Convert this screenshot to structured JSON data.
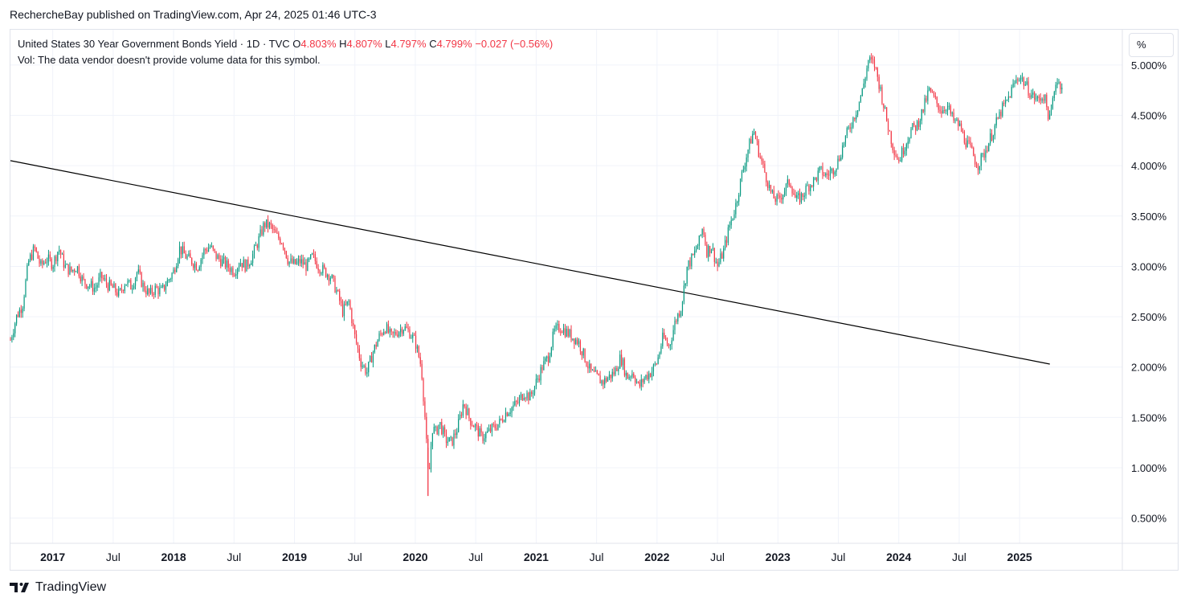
{
  "header": {
    "publisher": "RechercheBay published on TradingView.com, Apr 24, 2025 01:46 UTC-3"
  },
  "legend": {
    "symbol": "United States 30 Year Government Bonds Yield · 1D · TVC",
    "o_label": "O",
    "o_value": "4.803%",
    "h_label": "H",
    "h_value": "4.807%",
    "l_label": "L",
    "l_value": "4.797%",
    "c_label": "C",
    "c_value": "4.799%",
    "change": "−0.027 (−0.56%)",
    "volume_note": "Vol: The data vendor doesn't provide volume data for this symbol."
  },
  "scale": {
    "unit": "%"
  },
  "footer": {
    "brand": "TradingView"
  },
  "colors": {
    "up": "#089981",
    "down": "#f23645",
    "grid": "#f0f3fa",
    "trendline": "#000000"
  },
  "chart_data": {
    "type": "line",
    "title": "United States 30 Year Government Bonds Yield",
    "ylim": [
      0.25,
      5.35
    ],
    "xlim": [
      2016.3,
      2025.5
    ],
    "y_ticks": [
      0.5,
      1.0,
      1.5,
      2.0,
      2.5,
      3.0,
      3.5,
      4.0,
      4.5,
      5.0
    ],
    "y_tick_labels": [
      "0.500%",
      "1.000%",
      "1.500%",
      "2.000%",
      "2.500%",
      "3.000%",
      "3.500%",
      "4.000%",
      "4.500%",
      "5.000%"
    ],
    "x_ticks": [
      {
        "x": 2016.65,
        "label": "2017",
        "bold": true
      },
      {
        "x": 2017.15,
        "label": "Jul",
        "bold": false
      },
      {
        "x": 2017.65,
        "label": "2018",
        "bold": true
      },
      {
        "x": 2018.15,
        "label": "Jul",
        "bold": false
      },
      {
        "x": 2018.65,
        "label": "2019",
        "bold": true
      },
      {
        "x": 2019.15,
        "label": "Jul",
        "bold": false
      },
      {
        "x": 2019.65,
        "label": "2020",
        "bold": true
      },
      {
        "x": 2020.15,
        "label": "Jul",
        "bold": false
      },
      {
        "x": 2020.65,
        "label": "2021",
        "bold": true
      },
      {
        "x": 2021.15,
        "label": "Jul",
        "bold": false
      },
      {
        "x": 2021.65,
        "label": "2022",
        "bold": true
      },
      {
        "x": 2022.15,
        "label": "Jul",
        "bold": false
      },
      {
        "x": 2022.65,
        "label": "2023",
        "bold": true
      },
      {
        "x": 2023.15,
        "label": "Jul",
        "bold": false
      },
      {
        "x": 2023.65,
        "label": "2024",
        "bold": true
      },
      {
        "x": 2024.15,
        "label": "Jul",
        "bold": false
      },
      {
        "x": 2024.65,
        "label": "2025",
        "bold": true
      }
    ],
    "series": [
      {
        "points": [
          [
            2016.3,
            2.27
          ],
          [
            2016.35,
            2.5
          ],
          [
            2016.4,
            2.62
          ],
          [
            2016.45,
            3.05
          ],
          [
            2016.5,
            3.18
          ],
          [
            2016.55,
            3.0
          ],
          [
            2016.6,
            3.08
          ],
          [
            2016.65,
            3.02
          ],
          [
            2016.7,
            3.18
          ],
          [
            2016.75,
            3.0
          ],
          [
            2016.8,
            2.95
          ],
          [
            2016.85,
            3.0
          ],
          [
            2016.9,
            2.85
          ],
          [
            2016.95,
            2.82
          ],
          [
            2017.0,
            2.78
          ],
          [
            2017.05,
            2.9
          ],
          [
            2017.1,
            2.82
          ],
          [
            2017.15,
            2.78
          ],
          [
            2017.2,
            2.72
          ],
          [
            2017.25,
            2.85
          ],
          [
            2017.3,
            2.8
          ],
          [
            2017.35,
            2.95
          ],
          [
            2017.4,
            2.8
          ],
          [
            2017.45,
            2.72
          ],
          [
            2017.5,
            2.78
          ],
          [
            2017.55,
            2.75
          ],
          [
            2017.6,
            2.85
          ],
          [
            2017.65,
            2.95
          ],
          [
            2017.7,
            3.18
          ],
          [
            2017.75,
            3.1
          ],
          [
            2017.8,
            3.05
          ],
          [
            2017.85,
            3.0
          ],
          [
            2017.9,
            3.15
          ],
          [
            2017.95,
            3.2
          ],
          [
            2018.0,
            3.1
          ],
          [
            2018.05,
            3.05
          ],
          [
            2018.1,
            3.0
          ],
          [
            2018.15,
            2.95
          ],
          [
            2018.2,
            3.05
          ],
          [
            2018.25,
            3.0
          ],
          [
            2018.3,
            3.1
          ],
          [
            2018.35,
            3.25
          ],
          [
            2018.4,
            3.42
          ],
          [
            2018.45,
            3.4
          ],
          [
            2018.5,
            3.3
          ],
          [
            2018.55,
            3.25
          ],
          [
            2018.6,
            3.05
          ],
          [
            2018.65,
            3.02
          ],
          [
            2018.7,
            3.05
          ],
          [
            2018.75,
            3.0
          ],
          [
            2018.8,
            3.1
          ],
          [
            2018.85,
            3.0
          ],
          [
            2018.9,
            2.95
          ],
          [
            2018.95,
            2.9
          ],
          [
            2019.0,
            2.75
          ],
          [
            2019.05,
            2.55
          ],
          [
            2019.1,
            2.65
          ],
          [
            2019.15,
            2.3
          ],
          [
            2019.2,
            2.05
          ],
          [
            2019.25,
            1.95
          ],
          [
            2019.3,
            2.15
          ],
          [
            2019.35,
            2.3
          ],
          [
            2019.4,
            2.4
          ],
          [
            2019.45,
            2.3
          ],
          [
            2019.5,
            2.35
          ],
          [
            2019.55,
            2.4
          ],
          [
            2019.6,
            2.35
          ],
          [
            2019.65,
            2.25
          ],
          [
            2019.7,
            2.0
          ],
          [
            2019.73,
            1.5
          ],
          [
            2019.76,
            0.85
          ],
          [
            2019.79,
            1.4
          ],
          [
            2019.82,
            1.35
          ],
          [
            2019.85,
            1.45
          ],
          [
            2019.9,
            1.28
          ],
          [
            2019.95,
            1.25
          ],
          [
            2020.0,
            1.4
          ],
          [
            2020.05,
            1.65
          ],
          [
            2020.1,
            1.48
          ],
          [
            2020.15,
            1.4
          ],
          [
            2020.2,
            1.3
          ],
          [
            2020.25,
            1.35
          ],
          [
            2020.3,
            1.4
          ],
          [
            2020.35,
            1.45
          ],
          [
            2020.4,
            1.55
          ],
          [
            2020.45,
            1.6
          ],
          [
            2020.5,
            1.65
          ],
          [
            2020.55,
            1.75
          ],
          [
            2020.6,
            1.7
          ],
          [
            2020.65,
            1.85
          ],
          [
            2020.7,
            2.0
          ],
          [
            2020.75,
            2.1
          ],
          [
            2020.8,
            2.35
          ],
          [
            2020.85,
            2.4
          ],
          [
            2020.9,
            2.35
          ],
          [
            2020.95,
            2.3
          ],
          [
            2021.0,
            2.25
          ],
          [
            2021.05,
            2.1
          ],
          [
            2021.1,
            1.95
          ],
          [
            2021.15,
            1.9
          ],
          [
            2021.2,
            1.85
          ],
          [
            2021.25,
            1.9
          ],
          [
            2021.3,
            1.95
          ],
          [
            2021.35,
            2.1
          ],
          [
            2021.4,
            1.9
          ],
          [
            2021.45,
            1.95
          ],
          [
            2021.5,
            1.8
          ],
          [
            2021.55,
            1.9
          ],
          [
            2021.6,
            1.95
          ],
          [
            2021.65,
            2.05
          ],
          [
            2021.7,
            2.3
          ],
          [
            2021.75,
            2.2
          ],
          [
            2021.8,
            2.45
          ],
          [
            2021.85,
            2.6
          ],
          [
            2021.9,
            3.0
          ],
          [
            2021.95,
            3.1
          ],
          [
            2022.0,
            3.25
          ],
          [
            2022.03,
            3.4
          ],
          [
            2022.06,
            3.15
          ],
          [
            2022.1,
            3.2
          ],
          [
            2022.15,
            3.0
          ],
          [
            2022.2,
            3.15
          ],
          [
            2022.25,
            3.4
          ],
          [
            2022.3,
            3.6
          ],
          [
            2022.35,
            3.9
          ],
          [
            2022.4,
            4.15
          ],
          [
            2022.45,
            4.35
          ],
          [
            2022.5,
            4.1
          ],
          [
            2022.55,
            3.9
          ],
          [
            2022.6,
            3.7
          ],
          [
            2022.65,
            3.65
          ],
          [
            2022.7,
            3.75
          ],
          [
            2022.75,
            3.85
          ],
          [
            2022.8,
            3.65
          ],
          [
            2022.85,
            3.7
          ],
          [
            2022.9,
            3.8
          ],
          [
            2022.95,
            3.85
          ],
          [
            2023.0,
            3.95
          ],
          [
            2023.05,
            3.9
          ],
          [
            2023.1,
            3.95
          ],
          [
            2023.15,
            4.05
          ],
          [
            2023.2,
            4.25
          ],
          [
            2023.25,
            4.4
          ],
          [
            2023.3,
            4.55
          ],
          [
            2023.35,
            4.75
          ],
          [
            2023.4,
            5.05
          ],
          [
            2023.45,
            5.0
          ],
          [
            2023.5,
            4.75
          ],
          [
            2023.55,
            4.45
          ],
          [
            2023.6,
            4.2
          ],
          [
            2023.65,
            4.05
          ],
          [
            2023.7,
            4.2
          ],
          [
            2023.75,
            4.35
          ],
          [
            2023.8,
            4.4
          ],
          [
            2023.85,
            4.55
          ],
          [
            2023.9,
            4.75
          ],
          [
            2023.95,
            4.65
          ],
          [
            2024.0,
            4.55
          ],
          [
            2024.05,
            4.6
          ],
          [
            2024.1,
            4.45
          ],
          [
            2024.15,
            4.4
          ],
          [
            2024.2,
            4.25
          ],
          [
            2024.25,
            4.15
          ],
          [
            2024.3,
            4.0
          ],
          [
            2024.35,
            4.1
          ],
          [
            2024.4,
            4.25
          ],
          [
            2024.45,
            4.4
          ],
          [
            2024.5,
            4.55
          ],
          [
            2024.55,
            4.65
          ],
          [
            2024.6,
            4.8
          ],
          [
            2024.65,
            4.9
          ],
          [
            2024.7,
            4.8
          ],
          [
            2024.75,
            4.7
          ],
          [
            2024.8,
            4.65
          ],
          [
            2024.85,
            4.7
          ],
          [
            2024.9,
            4.45
          ],
          [
            2024.95,
            4.85
          ],
          [
            2025.0,
            4.8
          ]
        ]
      }
    ],
    "trendline": {
      "start": [
        2016.3,
        4.05
      ],
      "end": [
        2024.9,
        2.03
      ]
    }
  }
}
